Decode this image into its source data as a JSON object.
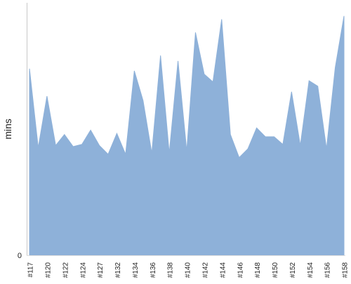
{
  "chart_data": {
    "type": "area",
    "ylabel": "mins",
    "ylim": [
      0,
      23
    ],
    "ytick_labels": [
      "0"
    ],
    "x_labels": [
      "#117",
      "#120",
      "#122",
      "#124",
      "#127",
      "#132",
      "#134",
      "#136",
      "#138",
      "#140",
      "#142",
      "#144",
      "#146",
      "#148",
      "#150",
      "#152",
      "#154",
      "#156",
      "#158"
    ],
    "series": [
      {
        "values": [
          17.0,
          9.8,
          14.5,
          10.0,
          11.0,
          9.9,
          10.1,
          11.4,
          10.0,
          9.2,
          11.1,
          9.2,
          16.8,
          14.1,
          9.3,
          18.2,
          9.3,
          17.7,
          9.5,
          20.3,
          16.5,
          15.8,
          21.5,
          11.0,
          8.9,
          9.7,
          11.6,
          10.8,
          10.8,
          10.1,
          14.9,
          10.0,
          15.9,
          15.4,
          9.7,
          17.1,
          21.8
        ]
      }
    ],
    "colors": {
      "fill": "#8eb1d9",
      "axis": "#c8c8c8",
      "label": "#222222"
    }
  }
}
